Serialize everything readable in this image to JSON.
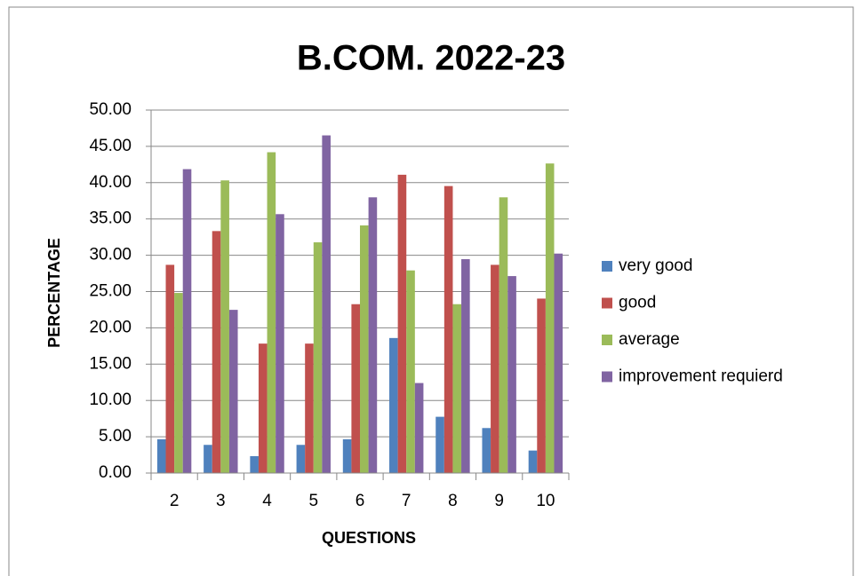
{
  "chart_data": {
    "type": "bar",
    "title": "B.COM. 2022-23",
    "x_label": "QUESTIONS",
    "y_label": "PERCENTAGE",
    "categories": [
      "2",
      "3",
      "4",
      "5",
      "6",
      "7",
      "8",
      "9",
      "10"
    ],
    "series": [
      {
        "name": "very good",
        "color": "#4f81bd",
        "values": [
          4.65,
          3.88,
          2.33,
          3.88,
          4.65,
          18.6,
          7.75,
          6.2,
          3.1
        ]
      },
      {
        "name": "good",
        "color": "#c0504d",
        "values": [
          28.68,
          33.33,
          17.83,
          17.83,
          23.26,
          41.09,
          39.53,
          28.68,
          24.03
        ]
      },
      {
        "name": "average",
        "color": "#9bbb59",
        "values": [
          24.81,
          40.31,
          44.19,
          31.78,
          34.11,
          27.91,
          23.26,
          37.98,
          42.64
        ]
      },
      {
        "name": "improvement requierd",
        "color": "#8064a2",
        "values": [
          41.86,
          22.48,
          35.66,
          46.51,
          37.98,
          12.4,
          29.46,
          27.13,
          30.23
        ]
      }
    ],
    "ylim": [
      0,
      50
    ],
    "yticks": [
      {
        "value": 0,
        "label": "0.00"
      },
      {
        "value": 5,
        "label": "5.00"
      },
      {
        "value": 10,
        "label": "10.00"
      },
      {
        "value": 15,
        "label": "15.00"
      },
      {
        "value": 20,
        "label": "20.00"
      },
      {
        "value": 25,
        "label": "25.00"
      },
      {
        "value": 30,
        "label": "30.00"
      },
      {
        "value": 35,
        "label": "35.00"
      },
      {
        "value": 40,
        "label": "40.00"
      },
      {
        "value": 45,
        "label": "45.00"
      },
      {
        "value": 50,
        "label": "50.00"
      }
    ],
    "grid": true,
    "legend": "right"
  }
}
